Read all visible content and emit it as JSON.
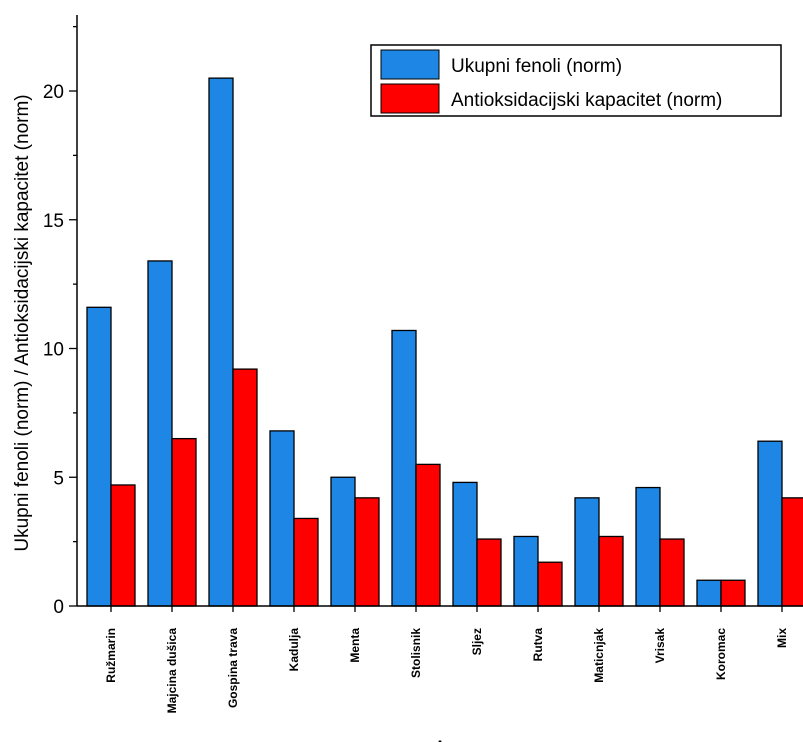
{
  "chart_data": {
    "type": "bar",
    "ylabel": "Ukupni fenoli (norm) / Antioksidacijski kapacitet (norm)",
    "xlabel": "A",
    "ylim": [
      0,
      23
    ],
    "yticks": [
      0,
      5,
      10,
      15,
      20
    ],
    "categories": [
      "Ružmarin",
      "Majcina dušica",
      "Gospina trava",
      "Kadulja",
      "Menta",
      "Stolisnik",
      "Sljez",
      "Rutva",
      "Maticnjak",
      "Vrisak",
      "Koromac",
      "Mix"
    ],
    "series": [
      {
        "name": "Ukupni fenoli (norm)",
        "color": "#1e87e6",
        "values": [
          11.6,
          13.4,
          20.5,
          6.8,
          5.0,
          10.7,
          4.8,
          2.7,
          4.2,
          4.6,
          1.0,
          6.4
        ]
      },
      {
        "name": "Antioksidacijski kapacitet (norm)",
        "color": "#ff0000",
        "values": [
          4.7,
          6.5,
          9.2,
          3.4,
          4.2,
          5.5,
          2.6,
          1.7,
          2.7,
          2.6,
          1.0,
          4.2
        ]
      }
    ],
    "legend_position": "top-right",
    "grid": false
  }
}
